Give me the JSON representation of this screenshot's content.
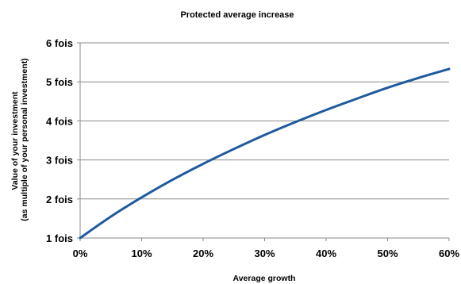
{
  "chart_data": {
    "type": "line",
    "title": "Protected average increase",
    "xlabel": "Average growth",
    "ylabel_lines": [
      "Value of your investment",
      "(as multiple of your personal investment)"
    ],
    "x_tick_labels": [
      "0%",
      "10%",
      "20%",
      "30%",
      "40%",
      "50%",
      "60%"
    ],
    "y_tick_labels": [
      "1 fois",
      "2 fois",
      "3 fois",
      "4 fois",
      "5 fois",
      "6 fois"
    ],
    "xlim": [
      0,
      0.6
    ],
    "ylim": [
      1,
      6
    ],
    "grid": "horizontal",
    "line_color": "#1f5a9e",
    "series": [
      {
        "x": [
          0,
          0.05,
          0.1,
          0.15,
          0.2,
          0.25,
          0.3,
          0.35,
          0.4,
          0.45,
          0.5,
          0.55,
          0.6
        ],
        "values": [
          1.0,
          1.55,
          2.04,
          2.49,
          2.9,
          3.28,
          3.64,
          3.97,
          4.28,
          4.57,
          4.85,
          5.1,
          5.33
        ]
      }
    ]
  }
}
